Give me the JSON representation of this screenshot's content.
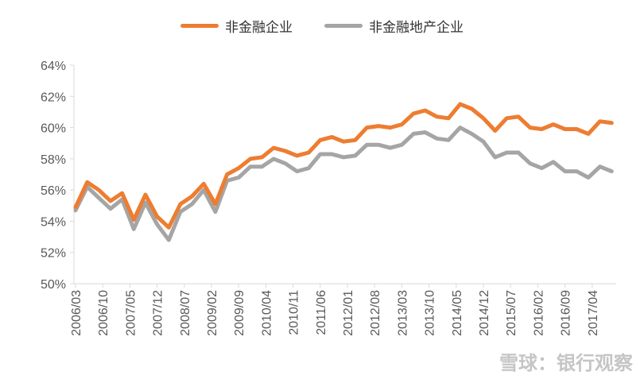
{
  "chart_data": {
    "type": "line",
    "title": "",
    "xlabel": "",
    "ylabel": "",
    "ylim": [
      50,
      64
    ],
    "yticks": [
      "50%",
      "52%",
      "54%",
      "56%",
      "58%",
      "60%",
      "62%",
      "64%"
    ],
    "xtick_labels": [
      "2006/03",
      "2006/10",
      "2007/05",
      "2007/12",
      "2008/07",
      "2009/02",
      "2009/09",
      "2010/04",
      "2010/11",
      "2011/06",
      "2012/01",
      "2012/08",
      "2013/03",
      "2013/10",
      "2014/05",
      "2014/12",
      "2015/07",
      "2016/02",
      "2016/09",
      "2017/04"
    ],
    "x": [
      "2006/03",
      "2006/06",
      "2006/09",
      "2006/12",
      "2007/03",
      "2007/06",
      "2007/09",
      "2007/12",
      "2008/03",
      "2008/06",
      "2008/09",
      "2008/12",
      "2009/03",
      "2009/06",
      "2009/09",
      "2009/12",
      "2010/03",
      "2010/06",
      "2010/09",
      "2010/12",
      "2011/03",
      "2011/06",
      "2011/09",
      "2011/12",
      "2012/03",
      "2012/06",
      "2012/09",
      "2012/12",
      "2013/03",
      "2013/06",
      "2013/09",
      "2013/12",
      "2014/03",
      "2014/06",
      "2014/09",
      "2014/12",
      "2015/03",
      "2015/06",
      "2015/09",
      "2015/12",
      "2016/03",
      "2016/06",
      "2016/09",
      "2016/12",
      "2017/03",
      "2017/06",
      "2017/09"
    ],
    "grid": false,
    "legend": "top",
    "series": [
      {
        "name": "非金融企业",
        "color": "#ED7D31",
        "values": [
          54.9,
          56.5,
          56.0,
          55.3,
          55.8,
          54.1,
          55.7,
          54.3,
          53.6,
          55.1,
          55.6,
          56.4,
          55.1,
          57.0,
          57.4,
          58.0,
          58.1,
          58.7,
          58.5,
          58.2,
          58.4,
          59.2,
          59.4,
          59.1,
          59.2,
          60.0,
          60.1,
          60.0,
          60.2,
          60.9,
          61.1,
          60.7,
          60.6,
          61.5,
          61.2,
          60.6,
          59.8,
          60.6,
          60.7,
          60.0,
          59.9,
          60.2,
          59.9,
          59.9,
          59.6,
          60.4,
          60.3
        ]
      },
      {
        "name": "非金融地产企业",
        "color": "#A5A5A5",
        "values": [
          54.7,
          56.2,
          55.5,
          54.8,
          55.4,
          53.5,
          55.2,
          53.8,
          52.8,
          54.6,
          55.1,
          56.0,
          54.6,
          56.6,
          56.8,
          57.5,
          57.5,
          58.0,
          57.7,
          57.2,
          57.4,
          58.3,
          58.3,
          58.1,
          58.2,
          58.9,
          58.9,
          58.7,
          58.9,
          59.6,
          59.7,
          59.3,
          59.2,
          60.0,
          59.6,
          59.1,
          58.1,
          58.4,
          58.4,
          57.7,
          57.4,
          57.8,
          57.2,
          57.2,
          56.8,
          57.5,
          57.2
        ]
      }
    ]
  },
  "watermark": "雪球：银行观察"
}
